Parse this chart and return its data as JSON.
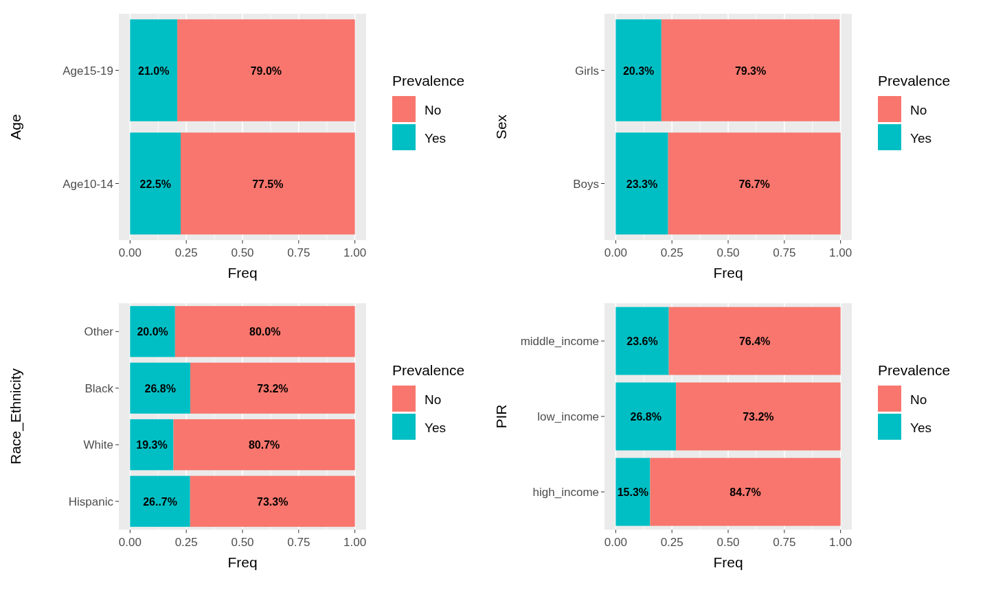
{
  "chart_data": [
    {
      "type": "bar",
      "orientation": "horizontal",
      "stacked": true,
      "categories": [
        "Age15-19",
        "Age10-14"
      ],
      "xlabel": "Freq",
      "ylabel": "Age",
      "legend_title": "Prevalence",
      "legend": "right",
      "grid": "x",
      "xlim": [
        -0.05,
        1.05
      ],
      "xticks": [
        {
          "value": 0,
          "label": "0.00"
        },
        {
          "value": 0.25,
          "label": "0.25"
        },
        {
          "value": 0.5,
          "label": "0.50"
        },
        {
          "value": 0.75,
          "label": "0.75"
        },
        {
          "value": 1,
          "label": "1.00"
        }
      ],
      "series": [
        {
          "name": "Yes",
          "color": "#00bfc4",
          "values": [
            0.21,
            0.225
          ],
          "value_labels": [
            "21.0%",
            "22.5%"
          ]
        },
        {
          "name": "No",
          "color": "#f8766d",
          "values": [
            0.79,
            0.775
          ],
          "value_labels": [
            "79.0%",
            "77.5%"
          ]
        }
      ]
    },
    {
      "type": "bar",
      "orientation": "horizontal",
      "stacked": true,
      "categories": [
        "Girls",
        "Boys"
      ],
      "xlabel": "Freq",
      "ylabel": "Sex",
      "legend_title": "Prevalence",
      "legend": "right",
      "grid": "x",
      "xlim": [
        -0.05,
        1.05
      ],
      "xticks": [
        {
          "value": 0,
          "label": "0.00"
        },
        {
          "value": 0.25,
          "label": "0.25"
        },
        {
          "value": 0.5,
          "label": "0.50"
        },
        {
          "value": 0.75,
          "label": "0.75"
        },
        {
          "value": 1,
          "label": "1.00"
        }
      ],
      "series": [
        {
          "name": "Yes",
          "color": "#00bfc4",
          "values": [
            0.203,
            0.233
          ],
          "value_labels": [
            "20.3%",
            "23.3%"
          ]
        },
        {
          "name": "No",
          "color": "#f8766d",
          "values": [
            0.793,
            0.767
          ],
          "value_labels": [
            "79.3%",
            "76.7%"
          ]
        }
      ]
    },
    {
      "type": "bar",
      "orientation": "horizontal",
      "stacked": true,
      "categories": [
        "Other",
        "Black",
        "White",
        "Hispanic"
      ],
      "xlabel": "Freq",
      "ylabel": "Race_Ethnicity",
      "legend_title": "Prevalence",
      "legend": "right",
      "grid": "x",
      "xlim": [
        -0.05,
        1.05
      ],
      "xticks": [
        {
          "value": 0,
          "label": "0.00"
        },
        {
          "value": 0.25,
          "label": "0.25"
        },
        {
          "value": 0.5,
          "label": "0.50"
        },
        {
          "value": 0.75,
          "label": "0.75"
        },
        {
          "value": 1,
          "label": "1.00"
        }
      ],
      "series": [
        {
          "name": "Yes",
          "color": "#00bfc4",
          "values": [
            0.2,
            0.268,
            0.193,
            0.267
          ],
          "value_labels": [
            "20.0%",
            "26.8%",
            "19.3%",
            "26..7%"
          ]
        },
        {
          "name": "No",
          "color": "#f8766d",
          "values": [
            0.8,
            0.732,
            0.807,
            0.733
          ],
          "value_labels": [
            "80.0%",
            "73.2%",
            "80.7%",
            "73.3%"
          ]
        }
      ]
    },
    {
      "type": "bar",
      "orientation": "horizontal",
      "stacked": true,
      "categories": [
        "middle_income",
        "low_income",
        "high_income"
      ],
      "xlabel": "Freq",
      "ylabel": "PIR",
      "legend_title": "Prevalence",
      "legend": "right",
      "grid": "x",
      "xlim": [
        -0.05,
        1.05
      ],
      "xticks": [
        {
          "value": 0,
          "label": "0.00"
        },
        {
          "value": 0.25,
          "label": "0.25"
        },
        {
          "value": 0.5,
          "label": "0.50"
        },
        {
          "value": 0.75,
          "label": "0.75"
        },
        {
          "value": 1,
          "label": "1.00"
        }
      ],
      "series": [
        {
          "name": "Yes",
          "color": "#00bfc4",
          "values": [
            0.236,
            0.268,
            0.153
          ],
          "value_labels": [
            "23.6%",
            "26.8%",
            "15.3%"
          ]
        },
        {
          "name": "No",
          "color": "#f8766d",
          "values": [
            0.764,
            0.732,
            0.847
          ],
          "value_labels": [
            "76.4%",
            "73.2%",
            "84.7%"
          ]
        }
      ]
    }
  ]
}
